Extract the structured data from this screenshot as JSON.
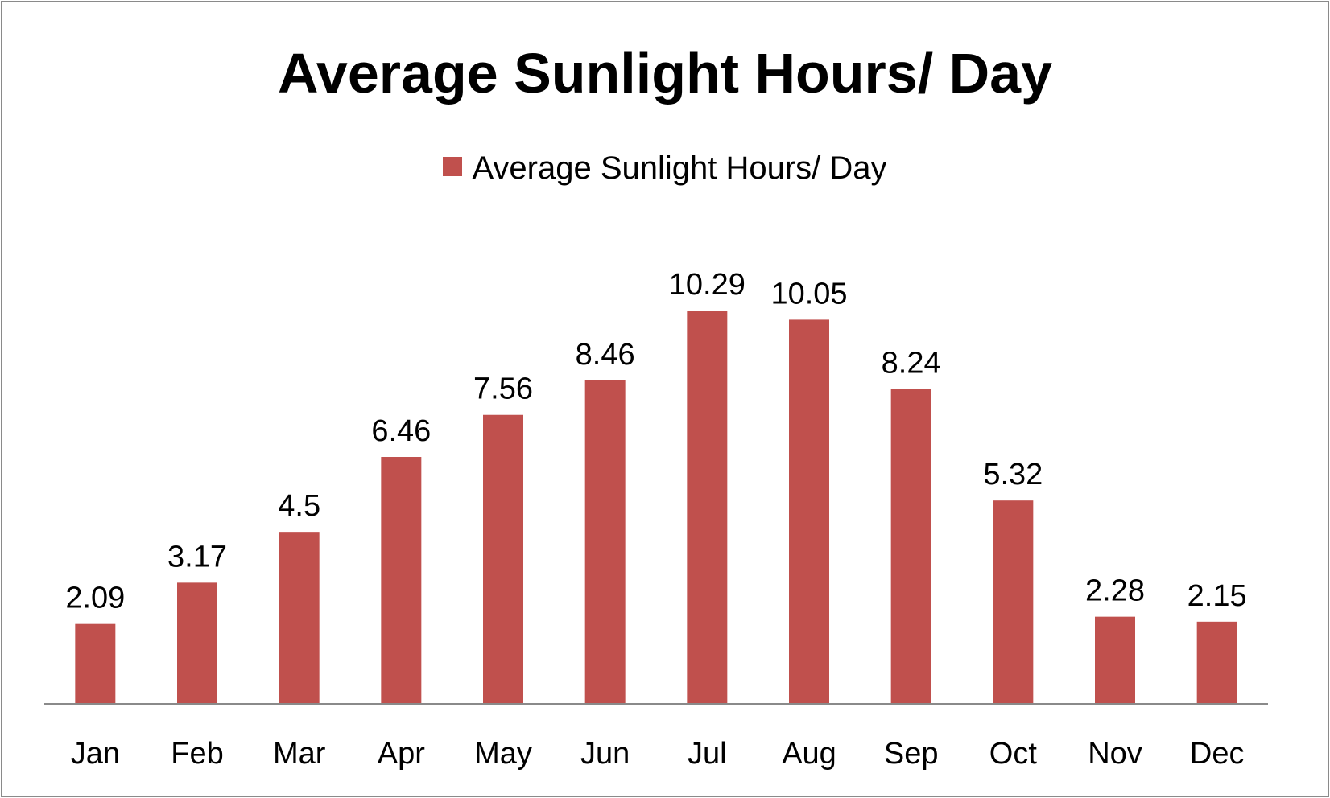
{
  "chart_data": {
    "type": "bar",
    "title": "Average Sunlight Hours/ Day",
    "categories": [
      "Jan",
      "Feb",
      "Mar",
      "Apr",
      "May",
      "Jun",
      "Jul",
      "Aug",
      "Sep",
      "Oct",
      "Nov",
      "Dec"
    ],
    "series": [
      {
        "name": "Average Sunlight Hours/ Day",
        "values": [
          2.09,
          3.17,
          4.5,
          6.46,
          7.56,
          8.46,
          10.29,
          10.05,
          8.24,
          5.32,
          2.28,
          2.15
        ],
        "color": "#c0504d"
      }
    ],
    "data_labels": [
      "2.09",
      "3.17",
      "4.5",
      "6.46",
      "7.56",
      "8.46",
      "10.29",
      "10.05",
      "8.24",
      "5.32",
      "2.28",
      "2.15"
    ],
    "xlabel": "",
    "ylabel": "",
    "ylim": [
      0,
      11
    ],
    "grid": false,
    "legend_position": "top",
    "axis_color": "#8a8a8a"
  }
}
